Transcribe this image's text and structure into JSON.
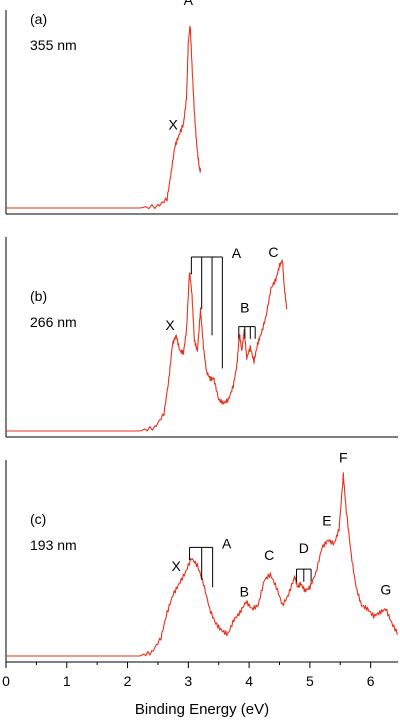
{
  "chart_data": {
    "type": "line",
    "xlabel": "Binding Energy (eV)",
    "xlim": [
      0,
      6.45
    ],
    "xticks": [
      "0",
      "1",
      "2",
      "3",
      "4",
      "5",
      "6"
    ],
    "xtick_values": [
      0,
      1,
      2,
      3,
      4,
      5,
      6
    ],
    "colors": {
      "trace": "#e8311a",
      "axes": "#000000"
    },
    "panels": [
      {
        "panel_label": "(a)",
        "wavelength": "355 nm",
        "series": [
          {
            "x": [
              0.0,
              2.2,
              2.5,
              2.65,
              2.72,
              2.78,
              2.85,
              2.92,
              2.97,
              3.0,
              3.03,
              3.06,
              3.1,
              3.14,
              3.18,
              3.2
            ],
            "y": [
              0.0,
              0.0,
              0.01,
              0.05,
              0.2,
              0.34,
              0.4,
              0.46,
              0.6,
              0.9,
              1.0,
              0.78,
              0.52,
              0.34,
              0.22,
              0.2
            ]
          }
        ],
        "labels": [
          {
            "text": "X",
            "x": 2.75,
            "y": 0.43
          },
          {
            "text": "A",
            "x": 3.0,
            "y": 1.11
          }
        ],
        "progressions": []
      },
      {
        "panel_label": "(b)",
        "wavelength": "266 nm",
        "series": [
          {
            "x": [
              0.0,
              2.2,
              2.45,
              2.6,
              2.68,
              2.74,
              2.8,
              2.86,
              2.92,
              2.97,
              3.02,
              3.06,
              3.1,
              3.15,
              3.2,
              3.25,
              3.3,
              3.36,
              3.42,
              3.5,
              3.58,
              3.66,
              3.74,
              3.8,
              3.84,
              3.88,
              3.92,
              3.96,
              4.02,
              4.08,
              4.14,
              4.2,
              4.28,
              4.36,
              4.44,
              4.5,
              4.55,
              4.58,
              4.62
            ],
            "y": [
              0.0,
              0.0,
              0.02,
              0.1,
              0.3,
              0.5,
              0.55,
              0.46,
              0.45,
              0.58,
              0.92,
              0.78,
              0.52,
              0.46,
              0.7,
              0.48,
              0.34,
              0.3,
              0.3,
              0.18,
              0.16,
              0.18,
              0.26,
              0.38,
              0.56,
              0.46,
              0.58,
              0.42,
              0.48,
              0.4,
              0.5,
              0.56,
              0.66,
              0.82,
              0.87,
              0.95,
              0.98,
              0.82,
              0.7
            ]
          }
        ],
        "labels": [
          {
            "text": "X",
            "x": 2.7,
            "y": 0.58
          },
          {
            "text": "B",
            "x": 3.93,
            "y": 0.68
          },
          {
            "text": "C",
            "x": 4.4,
            "y": 1.0
          }
        ],
        "progressions": [
          {
            "label": "A",
            "positions": [
              3.05,
              3.22,
              3.39,
              3.56
            ],
            "top": 1.0,
            "ends": [
              0.9,
              0.7,
              0.55,
              0.36
            ]
          },
          {
            "label": "",
            "positions": [
              3.83,
              3.93,
              4.02,
              4.1
            ],
            "top": 0.6,
            "ends": [
              0.53,
              0.53,
              0.53,
              0.53
            ]
          }
        ]
      },
      {
        "panel_label": "(c)",
        "wavelength": "193 nm",
        "series": [
          {
            "x": [
              0.0,
              2.2,
              2.4,
              2.55,
              2.65,
              2.75,
              2.85,
              2.95,
              3.05,
              3.15,
              3.25,
              3.35,
              3.45,
              3.55,
              3.65,
              3.75,
              3.85,
              3.95,
              4.05,
              4.15,
              4.25,
              4.35,
              4.45,
              4.55,
              4.65,
              4.75,
              4.8,
              4.85,
              4.92,
              5.0,
              5.1,
              5.2,
              5.3,
              5.4,
              5.48,
              5.55,
              5.6,
              5.68,
              5.76,
              5.85,
              5.95,
              6.05,
              6.15,
              6.25,
              6.35,
              6.45
            ],
            "y": [
              0.0,
              0.0,
              0.02,
              0.1,
              0.24,
              0.34,
              0.4,
              0.46,
              0.54,
              0.5,
              0.4,
              0.26,
              0.18,
              0.14,
              0.12,
              0.2,
              0.24,
              0.3,
              0.26,
              0.28,
              0.42,
              0.45,
              0.38,
              0.28,
              0.34,
              0.44,
              0.38,
              0.4,
              0.36,
              0.38,
              0.46,
              0.6,
              0.64,
              0.62,
              0.7,
              1.0,
              0.8,
              0.56,
              0.38,
              0.28,
              0.26,
              0.22,
              0.24,
              0.26,
              0.18,
              0.12
            ]
          }
        ],
        "labels": [
          {
            "text": "X",
            "x": 2.8,
            "y": 0.47
          },
          {
            "text": "B",
            "x": 3.92,
            "y": 0.33
          },
          {
            "text": "C",
            "x": 4.33,
            "y": 0.53
          },
          {
            "text": "D",
            "x": 4.9,
            "y": 0.57
          },
          {
            "text": "E",
            "x": 5.28,
            "y": 0.72
          },
          {
            "text": "F",
            "x": 5.55,
            "y": 1.07
          },
          {
            "text": "G",
            "x": 6.25,
            "y": 0.34
          }
        ],
        "progressions": [
          {
            "label": "A",
            "positions": [
              3.02,
              3.22,
              3.4
            ],
            "top": 0.6,
            "ends": [
              0.53,
              0.42,
              0.38
            ]
          },
          {
            "label": "",
            "positions": [
              4.78,
              4.9,
              5.02
            ],
            "top": 0.48,
            "ends": [
              0.41,
              0.41,
              0.41
            ]
          }
        ]
      }
    ]
  }
}
